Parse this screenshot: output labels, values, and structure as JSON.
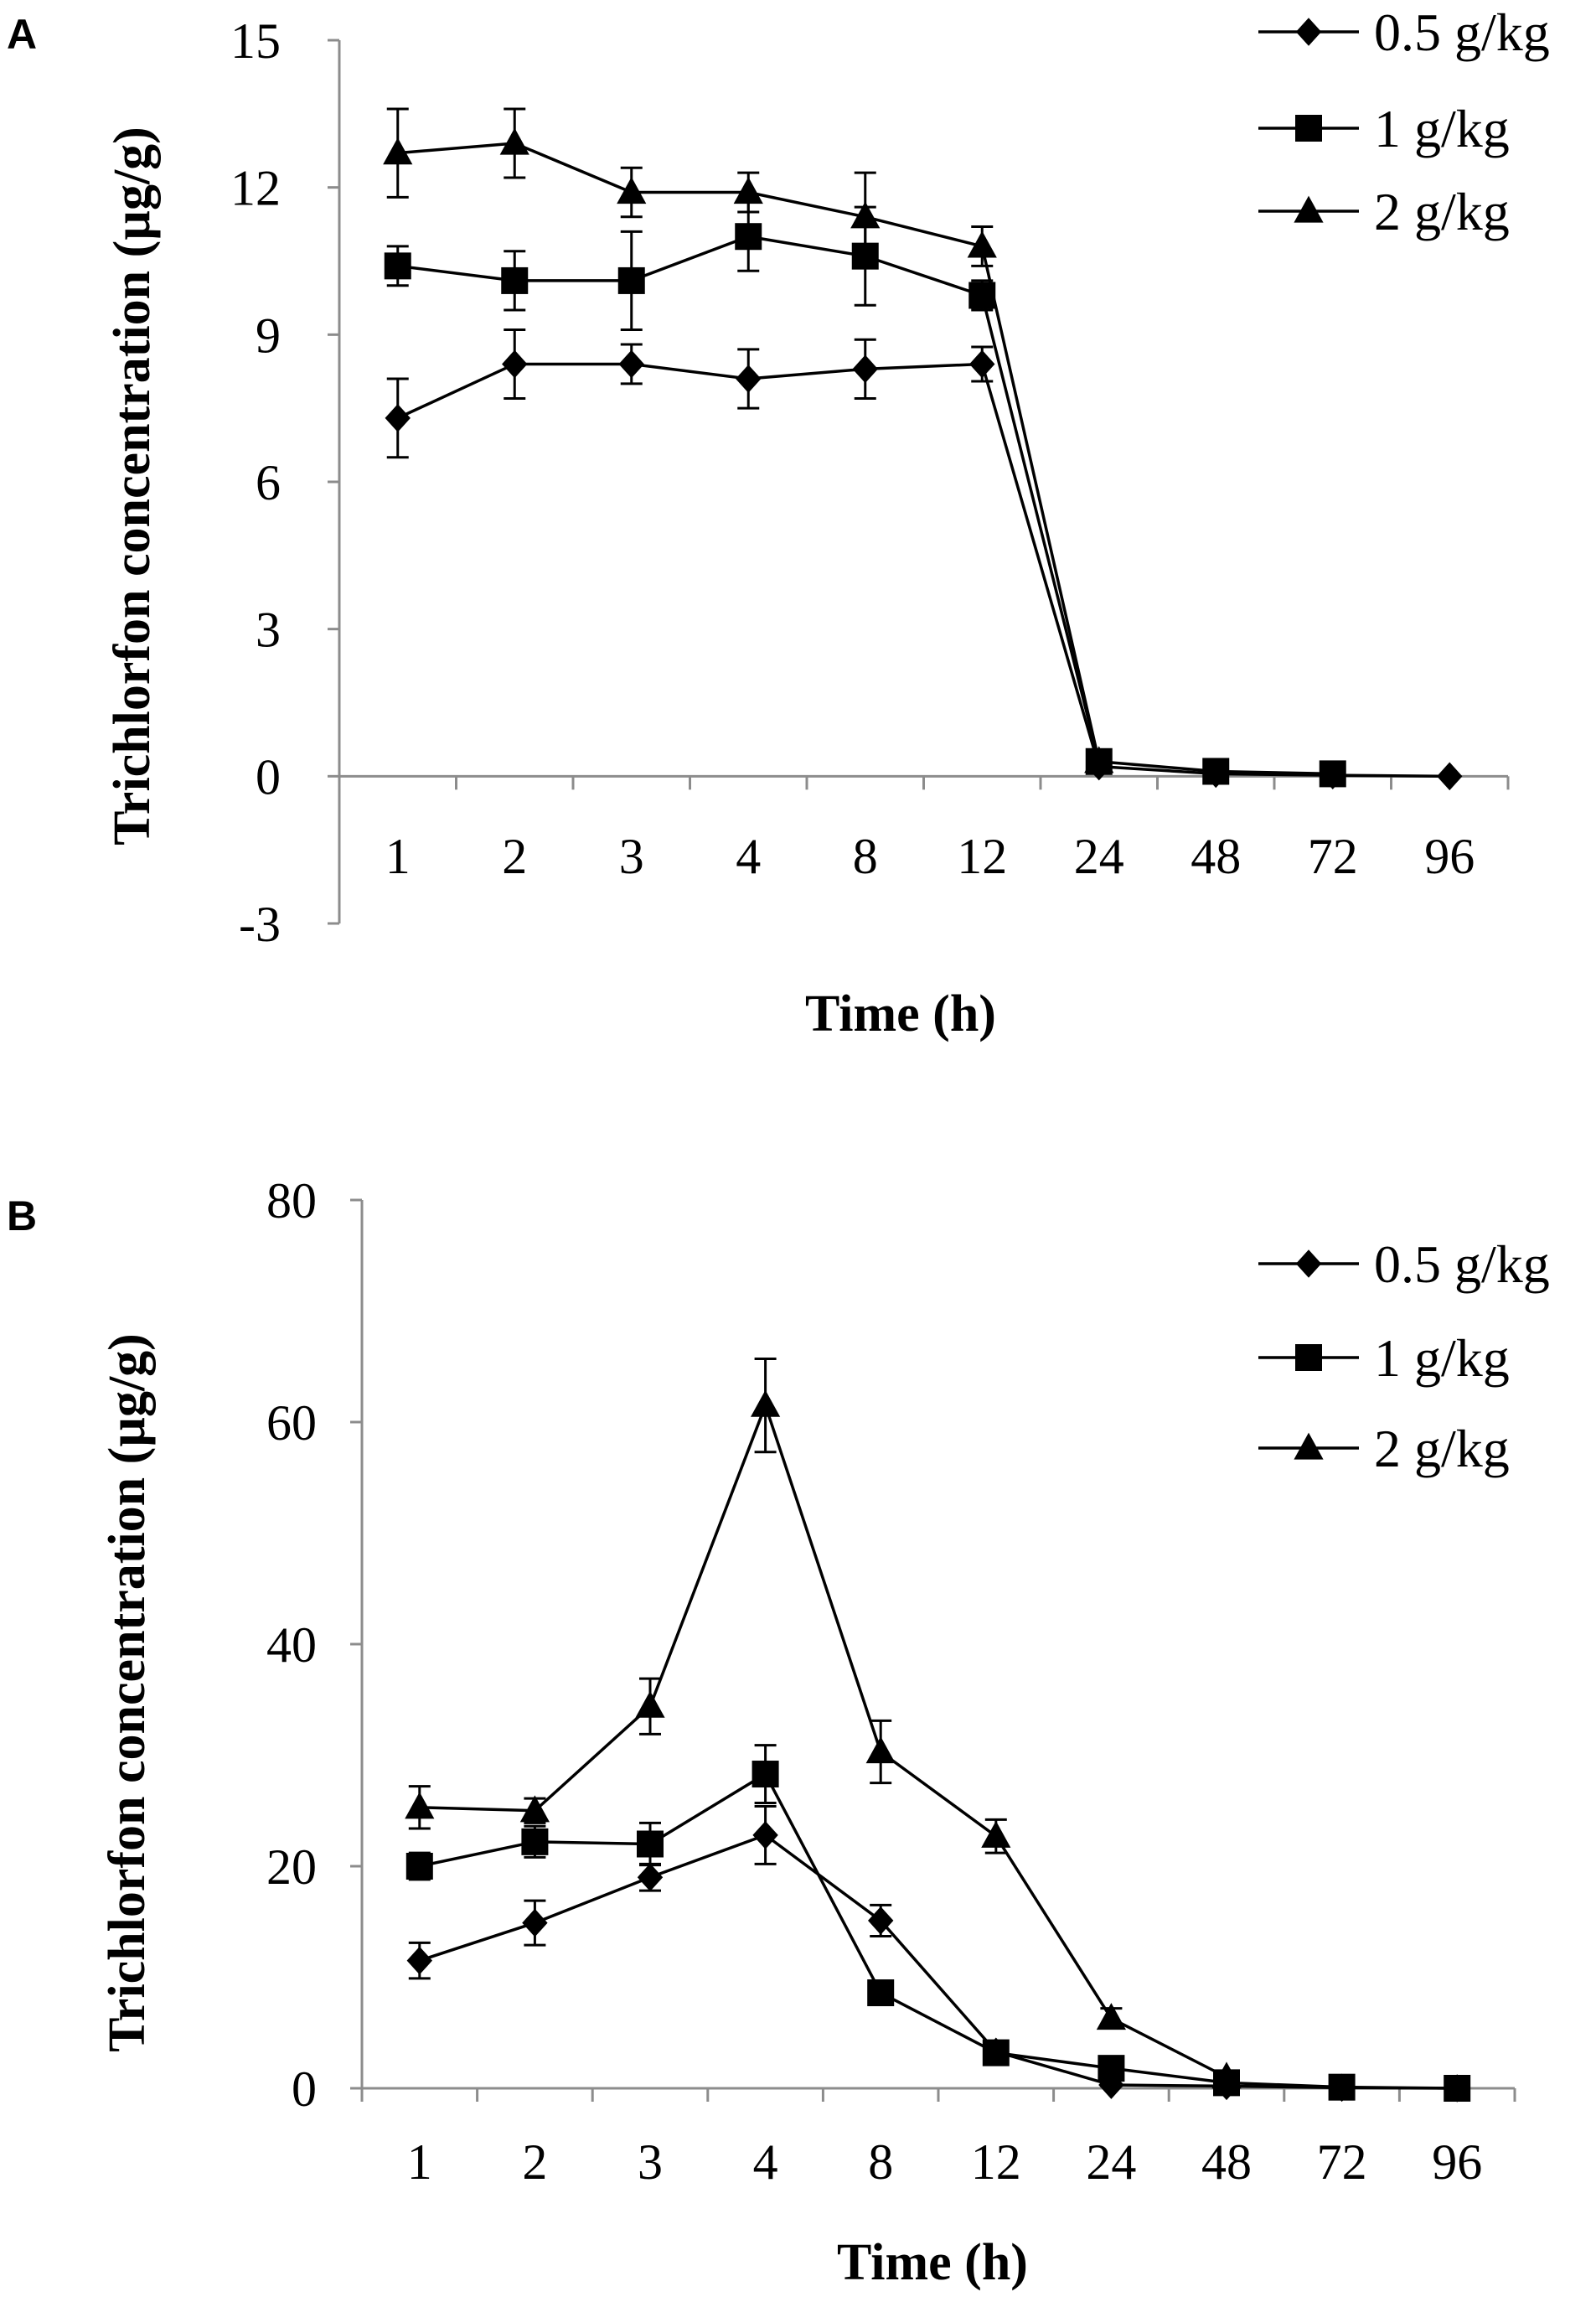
{
  "chart_data": [
    {
      "panel": "A",
      "type": "line",
      "title": "",
      "xlabel": "Time (h)",
      "ylabel": "Trichlorfon concentration (µg/g)",
      "categories": [
        "1",
        "2",
        "3",
        "4",
        "8",
        "12",
        "24",
        "48",
        "72",
        "96"
      ],
      "ylim": [
        -3,
        15
      ],
      "yticks": [
        -3,
        0,
        3,
        6,
        9,
        12,
        15
      ],
      "ytick_labels": [
        "-3",
        "0",
        "3",
        "6",
        "9",
        "12",
        "15"
      ],
      "legend_position": "top-right",
      "series": [
        {
          "name": "0.5 g/kg",
          "marker": "diamond",
          "values": [
            7.3,
            8.4,
            8.4,
            8.1,
            8.3,
            8.4,
            0.2,
            0.05,
            0.02,
            0.0
          ],
          "errors": [
            0.8,
            0.7,
            0.4,
            0.6,
            0.6,
            0.35,
            0.05,
            0.0,
            0.0,
            0.0
          ]
        },
        {
          "name": "1 g/kg",
          "marker": "square",
          "values": [
            10.4,
            10.1,
            10.1,
            11.0,
            10.6,
            9.8,
            0.3,
            0.1,
            0.05,
            null
          ],
          "errors": [
            0.4,
            0.6,
            1.0,
            0.7,
            1.0,
            0.3,
            0.05,
            0.0,
            0.0,
            null
          ]
        },
        {
          "name": "2 g/kg",
          "marker": "triangle",
          "values": [
            12.7,
            12.9,
            11.9,
            11.9,
            11.4,
            10.8,
            0.3,
            null,
            null,
            null
          ],
          "errors": [
            0.9,
            0.7,
            0.5,
            0.4,
            0.9,
            0.4,
            0.05,
            null,
            null,
            null
          ]
        }
      ]
    },
    {
      "panel": "B",
      "type": "line",
      "title": "",
      "xlabel": "Time (h)",
      "ylabel": "Trichlorfon concentration (µg/g)",
      "categories": [
        "1",
        "2",
        "3",
        "4",
        "8",
        "12",
        "24",
        "48",
        "72",
        "96"
      ],
      "ylim": [
        0,
        80
      ],
      "yticks": [
        0,
        20,
        40,
        60,
        80
      ],
      "ytick_labels": [
        "0",
        "20",
        "40",
        "60",
        "80"
      ],
      "legend_position": "top-right",
      "series": [
        {
          "name": "0.5 g/kg",
          "marker": "diamond",
          "values": [
            11.5,
            14.9,
            19.0,
            22.8,
            15.1,
            3.3,
            0.3,
            0.2,
            0.05,
            0.0
          ],
          "errors": [
            1.6,
            2.0,
            1.2,
            2.6,
            1.4,
            0.4,
            0.1,
            0.0,
            0.0,
            0.0
          ]
        },
        {
          "name": "1 g/kg",
          "marker": "square",
          "values": [
            20.0,
            22.2,
            22.0,
            28.3,
            8.6,
            3.2,
            1.8,
            0.5,
            0.1,
            0.0
          ],
          "errors": [
            1.2,
            1.4,
            1.9,
            2.6,
            0.5,
            0.4,
            0.3,
            0.1,
            0.0,
            0.0
          ]
        },
        {
          "name": "2 g/kg",
          "marker": "triangle",
          "values": [
            25.3,
            25.0,
            34.4,
            61.5,
            30.3,
            22.7,
            6.3,
            1.0,
            null,
            null
          ],
          "errors": [
            1.9,
            1.1,
            2.5,
            4.2,
            2.8,
            1.5,
            0.9,
            0.2,
            null,
            null
          ]
        }
      ]
    }
  ]
}
